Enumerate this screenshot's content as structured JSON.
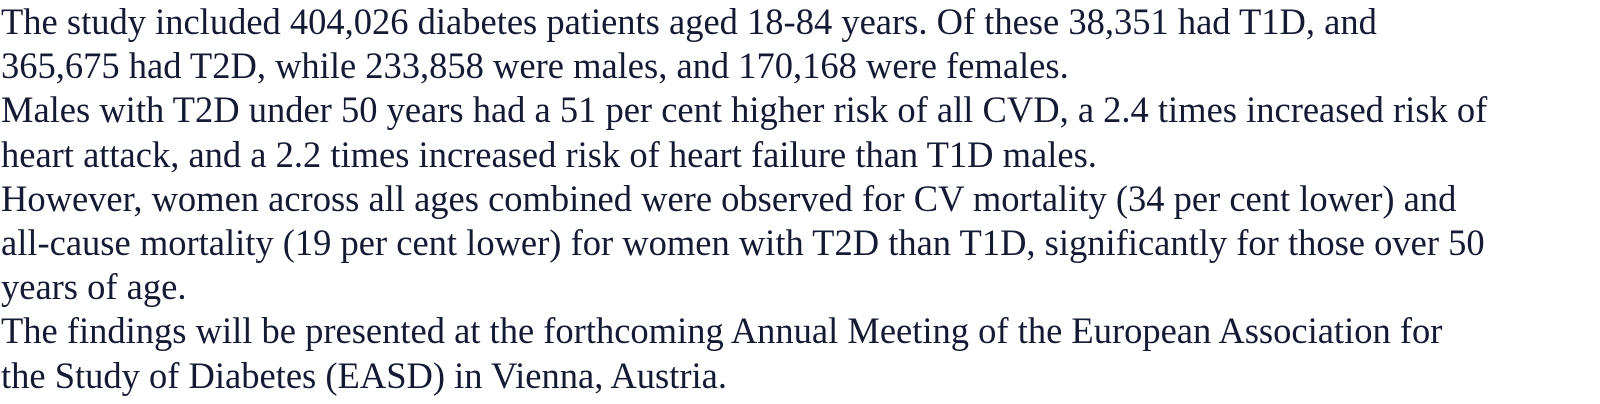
{
  "paragraphs": [
    {
      "lines": [
        "The study included 404,026 diabetes patients aged 18-84 years. Of these 38,351 had T1D, and",
        "365,675 had T2D, while 233,858 were males, and 170,168 were females."
      ]
    },
    {
      "lines": [
        "Males with T2D under 50 years had a 51 per cent higher risk of all CVD, a 2.4 times increased risk of",
        "heart attack, and a 2.2 times increased risk of heart failure than T1D males."
      ]
    },
    {
      "lines": [
        "However, women across all ages combined were observed for CV mortality (34 per cent lower) and",
        "all-cause mortality (19 per cent lower) for women with T2D than T1D, significantly for those over 50",
        "years of age."
      ]
    },
    {
      "lines": [
        "The findings will be presented at the forthcoming Annual Meeting of the European Association for",
        "the Study of Diabetes (EASD) in Vienna, Austria."
      ]
    }
  ]
}
